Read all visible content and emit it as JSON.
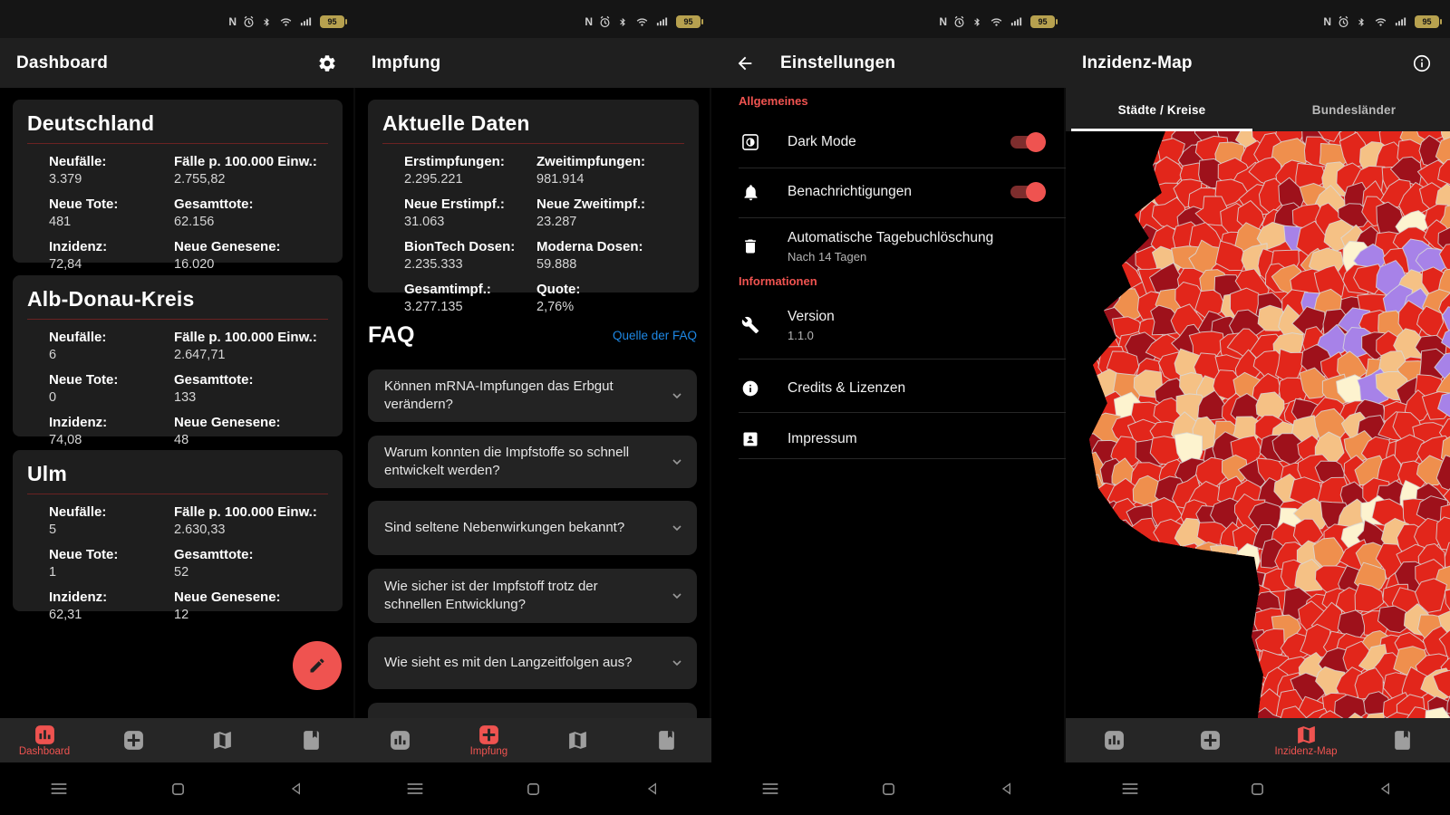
{
  "status_bar": {
    "battery_percent": "95"
  },
  "colors": {
    "accent": "#ef5350",
    "link_blue": "#1e88e5",
    "card_rule": "#6b2222",
    "battery_gold": "#b7a14f"
  },
  "icons": {
    "settings": "gear-icon",
    "edit": "pencil-icon",
    "back": "arrow-left-icon",
    "info_header": "info-circle-icon",
    "expand": "chevron-down-icon",
    "nav_dashboard": "bar-chart-icon",
    "nav_vaccination": "medical-cross-icon",
    "nav_map": "folded-map-icon",
    "nav_diary": "journal-bookmark-icon",
    "dark_mode": "display-contrast-icon",
    "notifications": "bell-icon",
    "auto_delete": "trash-icon",
    "version": "wrench-icon",
    "credits": "info-icon",
    "impressum": "contact-page-icon",
    "status": [
      "nfc-icon",
      "alarm-icon",
      "bluetooth-icon",
      "wifi-icon",
      "signal-icon",
      "battery-icon"
    ],
    "system": [
      "menu-icon",
      "home-icon",
      "back-triangle-icon"
    ]
  },
  "screens": {
    "dashboard": {
      "app_title": "Dashboard",
      "nav_label": "Dashboard",
      "cards": [
        {
          "title": "Deutschland",
          "stats": [
            {
              "label": "Neufälle:",
              "value": "3.379"
            },
            {
              "label": "Fälle p. 100.000 Einw.:",
              "value": "2.755,82"
            },
            {
              "label": "Neue Tote:",
              "value": "481"
            },
            {
              "label": "Gesamttote:",
              "value": "62.156"
            },
            {
              "label": "Inzidenz:",
              "value": "72,84"
            },
            {
              "label": "Neue Genesene:",
              "value": "16.020"
            }
          ]
        },
        {
          "title": "Alb-Donau-Kreis",
          "stats": [
            {
              "label": "Neufälle:",
              "value": "6"
            },
            {
              "label": "Fälle p. 100.000 Einw.:",
              "value": "2.647,71"
            },
            {
              "label": "Neue Tote:",
              "value": "0"
            },
            {
              "label": "Gesamttote:",
              "value": "133"
            },
            {
              "label": "Inzidenz:",
              "value": "74,08"
            },
            {
              "label": "Neue Genesene:",
              "value": "48"
            }
          ]
        },
        {
          "title": "Ulm",
          "stats": [
            {
              "label": "Neufälle:",
              "value": "5"
            },
            {
              "label": "Fälle p. 100.000 Einw.:",
              "value": "2.630,33"
            },
            {
              "label": "Neue Tote:",
              "value": "1"
            },
            {
              "label": "Gesamttote:",
              "value": "52"
            },
            {
              "label": "Inzidenz:",
              "value": "62,31"
            },
            {
              "label": "Neue Genesene:",
              "value": "12"
            }
          ]
        }
      ]
    },
    "impfung": {
      "app_title": "Impfung",
      "nav_label": "Impfung",
      "card": {
        "title": "Aktuelle Daten",
        "stats": [
          {
            "label": "Erstimpfungen:",
            "value": "2.295.221"
          },
          {
            "label": "Zweitimpfungen:",
            "value": "981.914"
          },
          {
            "label": "Neue Erstimpf.:",
            "value": "31.063"
          },
          {
            "label": "Neue Zweitimpf.:",
            "value": "23.287"
          },
          {
            "label": "BionTech Dosen:",
            "value": "2.235.333"
          },
          {
            "label": "Moderna Dosen:",
            "value": "59.888"
          },
          {
            "label": "Gesamtimpf.:",
            "value": "3.277.135"
          },
          {
            "label": "Quote:",
            "value": "2,76%"
          }
        ]
      },
      "faq": {
        "heading": "FAQ",
        "source_link": "Quelle der FAQ",
        "questions": [
          "Können mRNA-Impfungen das Erbgut verändern?",
          "Warum konnten die Impfstoffe so schnell entwickelt werden?",
          "Sind seltene Nebenwirkungen bekannt?",
          "Wie sicher ist der Impfstoff trotz der schnellen Entwicklung?",
          "Wie sieht es mit den Langzeitfolgen aus?"
        ]
      }
    },
    "einstellungen": {
      "app_title": "Einstellungen",
      "sections": [
        {
          "heading": "Allgemeines",
          "items": [
            {
              "label": "Dark Mode",
              "toggle": "on"
            },
            {
              "label": "Benachrichtigungen",
              "toggle": "on"
            },
            {
              "label": "Automatische Tagebuchlöschung",
              "subtitle": "Nach 14 Tagen"
            }
          ]
        },
        {
          "heading": "Informationen",
          "items": [
            {
              "label": "Version",
              "subtitle": "1.1.0"
            },
            {
              "label": "Credits & Lizenzen"
            },
            {
              "label": "Impressum"
            }
          ]
        }
      ]
    },
    "inzidenz_map": {
      "app_title": "Inzidenz-Map",
      "nav_label": "Inzidenz-Map",
      "tabs": [
        {
          "label": "Städte / Kreise",
          "active": true
        },
        {
          "label": "Bundesländer",
          "active": false
        }
      ],
      "palette": {
        "red": "#e2261b",
        "dark_red": "#9e111b",
        "orange": "#ef8f4d",
        "sand": "#f5c185",
        "cream": "#fdf3cf",
        "purple": "#a782e8",
        "border": "#d8d8d8"
      }
    }
  }
}
